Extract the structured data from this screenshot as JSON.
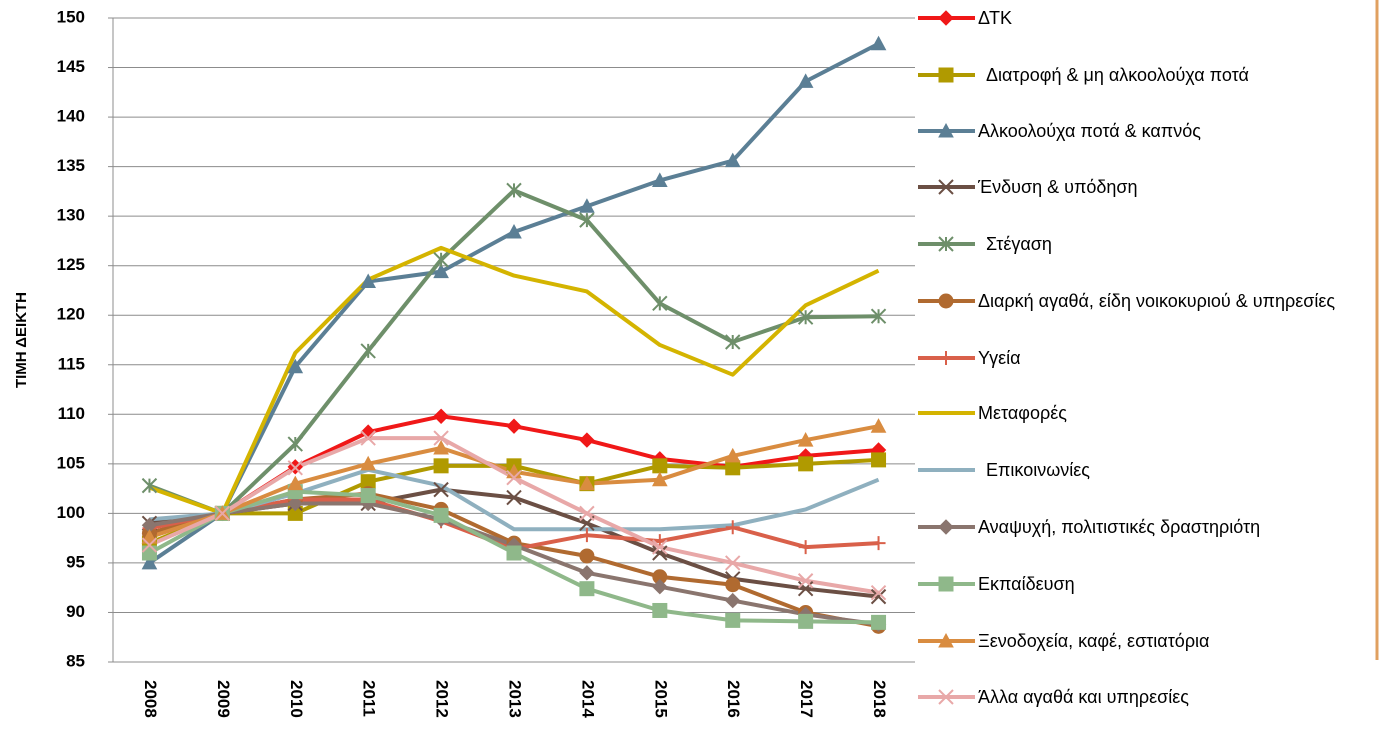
{
  "chart_data": {
    "type": "line",
    "y_label": "ΤΙΜΗ ΔΕΙΚΤΗ",
    "categories": [
      "2008",
      "2009",
      "2010",
      "2011",
      "2012",
      "2013",
      "2014",
      "2015",
      "2016",
      "2017",
      "2018"
    ],
    "ylim": [
      85,
      150
    ],
    "yticks": [
      85,
      90,
      95,
      100,
      105,
      110,
      115,
      120,
      125,
      130,
      135,
      140,
      145,
      150
    ],
    "grid": true,
    "legend": "right",
    "series": [
      {
        "name": "ΔΤΚ",
        "color": "#f01818",
        "marker": "diamond",
        "values": [
          98,
          100,
          104.7,
          108.2,
          109.8,
          108.8,
          107.4,
          105.5,
          104.7,
          105.8,
          106.4
        ]
      },
      {
        "name": "Διατροφή & μη αλκοολούχα ποτά",
        "color": "#b09a00",
        "marker": "square",
        "values": [
          97,
          100,
          100,
          103.2,
          104.8,
          104.8,
          103,
          104.8,
          104.6,
          105,
          105.4
        ]
      },
      {
        "name": "Αλκοολούχα ποτά & καπνός",
        "color": "#5b7f95",
        "marker": "triangle",
        "values": [
          95,
          100,
          114.8,
          123.4,
          124.4,
          128.4,
          131,
          133.6,
          135.6,
          143.6,
          147.4
        ]
      },
      {
        "name": "Ένδυση & υπόδηση",
        "color": "#6b4f44",
        "marker": "x",
        "values": [
          99,
          100,
          101,
          101,
          102.4,
          101.6,
          99,
          96,
          93.4,
          92.4,
          91.6
        ]
      },
      {
        "name": "Στέγαση",
        "color": "#6e8f6a",
        "marker": "asterisk",
        "values": [
          102.8,
          100,
          107,
          116.4,
          125.6,
          132.6,
          129.6,
          121.2,
          117.3,
          119.8,
          119.9
        ]
      },
      {
        "name": "Διαρκή αγαθά, είδη νοικοκυριού & υπηρεσίες",
        "color": "#b06a30",
        "marker": "circle",
        "values": [
          98,
          100,
          101.4,
          102,
          100.4,
          97,
          95.7,
          93.6,
          92.8,
          90,
          88.6
        ]
      },
      {
        "name": "Υγεία",
        "color": "#d9604a",
        "marker": "plus",
        "values": [
          98.5,
          100,
          101.4,
          101.4,
          99.2,
          96.4,
          97.8,
          97.2,
          98.6,
          96.6,
          97
        ]
      },
      {
        "name": "Μεταφορές",
        "color": "#d4b400",
        "marker": "none",
        "values": [
          102.6,
          100,
          116.2,
          123.6,
          126.8,
          124,
          122.4,
          117,
          114,
          121,
          124.5
        ]
      },
      {
        "name": "Επικοινωνίες",
        "color": "#8fb0bf",
        "marker": "none",
        "values": [
          99.4,
          100,
          102,
          104.4,
          102.8,
          98.4,
          98.4,
          98.4,
          98.8,
          100.4,
          103.4
        ]
      },
      {
        "name": "Αναψυχή, πολιτιστικές δραστηριότη",
        "color": "#8a756e",
        "marker": "diamond",
        "values": [
          98.8,
          100,
          101,
          101,
          99.4,
          96.8,
          94,
          92.6,
          91.2,
          89.8,
          88.8
        ]
      },
      {
        "name": "Εκπαίδευση",
        "color": "#8fb88a",
        "marker": "square",
        "values": [
          96,
          100,
          102.2,
          101.8,
          99.8,
          96,
          92.4,
          90.2,
          89.2,
          89.1,
          89
        ]
      },
      {
        "name": "Ξενοδοχεία, καφέ, εστιατόρια",
        "color": "#d98c40",
        "marker": "triangle",
        "values": [
          97.6,
          100,
          103,
          105,
          106.6,
          104.2,
          103,
          103.4,
          105.8,
          107.4,
          108.8
        ]
      },
      {
        "name": "Άλλα αγαθά και υπηρεσίες",
        "color": "#e8a8a8",
        "marker": "x",
        "values": [
          96.8,
          100,
          104.6,
          107.6,
          107.6,
          103.6,
          100,
          96.6,
          95,
          93.2,
          92
        ]
      }
    ]
  }
}
